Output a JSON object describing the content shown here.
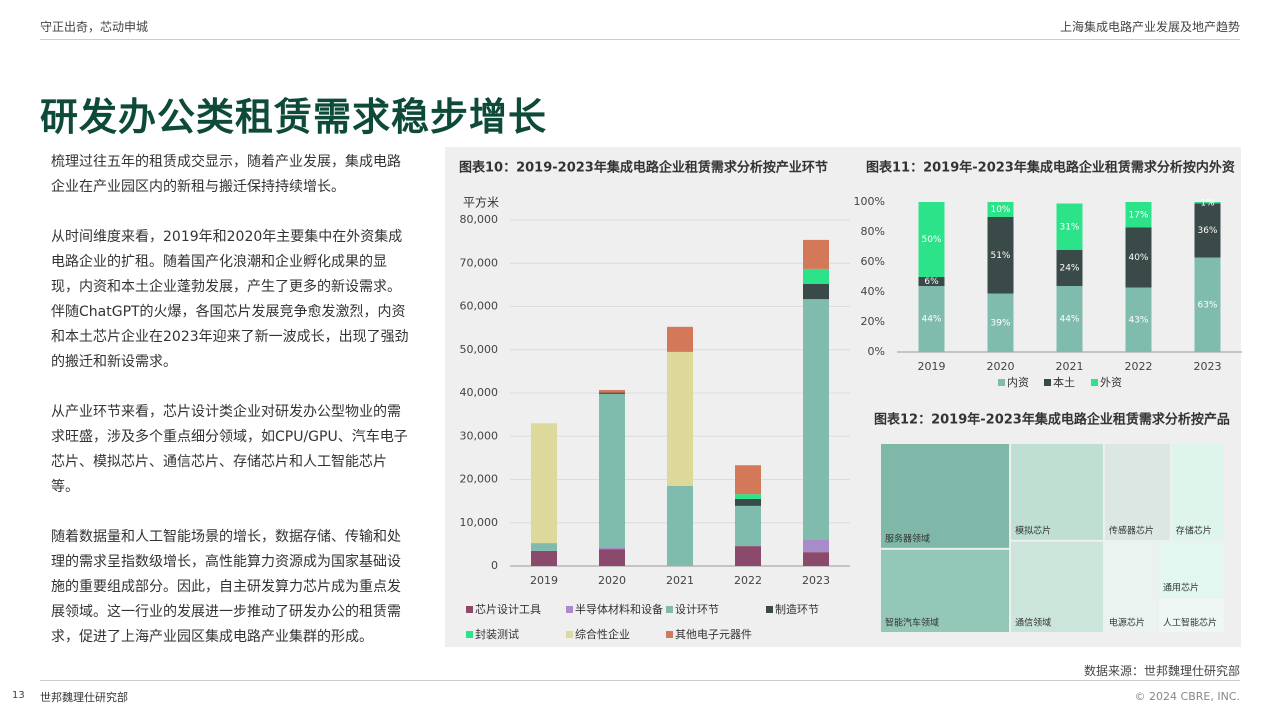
{
  "header": {
    "left": "守正出奇，芯动申城",
    "right": "上海集成电路产业发展及地产趋势"
  },
  "title": "研发办公类租赁需求稳步增长",
  "paragraphs": [
    "梳理过往五年的租赁成交显示，随着产业发展，集成电路企业在产业园区内的新租与搬迁保持持续增长。",
    "从时间维度来看，2019年和2020年主要集中在外资集成电路企业的扩租。随着国产化浪潮和企业孵化成果的显现，内资和本土企业蓬勃发展，产生了更多的新设需求。伴随ChatGPT的火爆，各国芯片发展竞争愈发激烈，内资和本土芯片企业在2023年迎来了新一波成长，出现了强劲的搬迁和新设需求。",
    "从产业环节来看，芯片设计类企业对研发办公型物业的需求旺盛，涉及多个重点细分领域，如CPU/GPU、汽车电子芯片、模拟芯片、通信芯片、存储芯片和人工智能芯片等。",
    "随着数据量和人工智能场景的增长，数据存储、传输和处理的需求呈指数级增长，高性能算力资源成为国家基础设施的重要组成部分。因此，自主研发算力芯片成为重点发展领域。这一行业的发展进一步推动了研发办公的租赁需求，促进了上海产业园区集成电路产业集群的形成。"
  ],
  "chart_data": [
    {
      "type": "bar",
      "stacked": true,
      "title": "图表10：2019-2023年集成电路企业租赁需求分析按产业环节",
      "y_label": "平方米",
      "categories": [
        "2019",
        "2020",
        "2021",
        "2022",
        "2023"
      ],
      "series": [
        {
          "name": "芯片设计工具",
          "color": "#8b4a6b",
          "values": [
            3500,
            3900,
            0,
            4600,
            3200
          ]
        },
        {
          "name": "半导体材料和设备",
          "color": "#a98bc9",
          "values": [
            0,
            400,
            0,
            0,
            3000
          ]
        },
        {
          "name": "设计环节",
          "color": "#7fbcad",
          "values": [
            1800,
            35500,
            18500,
            9300,
            55500
          ]
        },
        {
          "name": "制造环节",
          "color": "#3a4a48",
          "values": [
            0,
            300,
            0,
            1600,
            3500
          ]
        },
        {
          "name": "封装测试",
          "color": "#2de38a",
          "values": [
            0,
            0,
            0,
            1100,
            3500
          ]
        },
        {
          "name": "综合性企业",
          "color": "#dcd99a",
          "values": [
            27700,
            0,
            31000,
            0,
            0
          ]
        },
        {
          "name": "其他电子元器件",
          "color": "#d4785a",
          "values": [
            0,
            600,
            5800,
            6700,
            6700
          ]
        }
      ],
      "ylim": [
        0,
        80000
      ],
      "yticks": [
        0,
        {
          "value": 10000,
          "label": "10,000"
        },
        {
          "value": 20000,
          "label": "20,000"
        },
        {
          "value": 30000,
          "label": "30,000"
        },
        {
          "value": 40000,
          "label": "40,000"
        },
        {
          "value": 50000,
          "label": "50,000"
        },
        {
          "value": 60000,
          "label": "60,000"
        },
        {
          "value": 70000,
          "label": "70,000"
        },
        {
          "value": 80000,
          "label": "80,000"
        }
      ],
      "grid": true,
      "legend": "bottom"
    },
    {
      "type": "bar",
      "stacked": true,
      "title": "图表11：2019年-2023年集成电路企业租赁需求分析按内外资",
      "categories": [
        "2019",
        "2020",
        "2021",
        "2022",
        "2023"
      ],
      "series": [
        {
          "name": "内资",
          "color": "#7fbcad",
          "values": [
            44,
            39,
            44,
            43,
            63
          ],
          "value_labels": [
            "44%",
            "39%",
            "44%",
            "43%",
            "63%"
          ]
        },
        {
          "name": "本土",
          "color": "#3a4a48",
          "values": [
            6,
            51,
            24,
            40,
            36
          ],
          "value_labels": [
            "6%",
            "51%",
            "24%",
            "40%",
            "36%"
          ]
        },
        {
          "name": "外资",
          "color": "#2de38a",
          "values": [
            50,
            10,
            31,
            17,
            1
          ],
          "value_labels": [
            "50%",
            "10%",
            "31%",
            "17%",
            "1%"
          ]
        }
      ],
      "ylim": [
        0,
        100
      ],
      "yticks": [
        {
          "value": 0,
          "label": "0%"
        },
        {
          "value": 20,
          "label": "20%"
        },
        {
          "value": 40,
          "label": "40%"
        },
        {
          "value": 60,
          "label": "60%"
        },
        {
          "value": 80,
          "label": "80%"
        },
        {
          "value": 100,
          "label": "100%"
        }
      ],
      "grid": false,
      "legend": "bottom"
    },
    {
      "type": "treemap",
      "title": "图表12：2019年-2023年集成电路企业租赁需求分析按产品",
      "categories": [
        "服务器领域",
        "智能汽车领域",
        "模拟芯片",
        "通信领域",
        "传感器芯片",
        "存储芯片",
        "电源芯片",
        "通用芯片",
        "人工智能芯片"
      ],
      "values": [
        21,
        16.7,
        14,
        13.2,
        10,
        8.1,
        7.6,
        5.8,
        3.6
      ],
      "colors": [
        "#7fb8a8",
        "#93c7b7",
        "#bfdfd3",
        "#cbe5db",
        "#dce7e3",
        "#def5ec",
        "#ebf3f0",
        "#e2f7ef",
        "#eef7f3"
      ]
    }
  ],
  "source": "数据来源：世邦魏理仕研究部",
  "footer": {
    "page": "13",
    "org": "世邦魏理仕研究部",
    "copyright": "© 2024 CBRE, INC."
  }
}
